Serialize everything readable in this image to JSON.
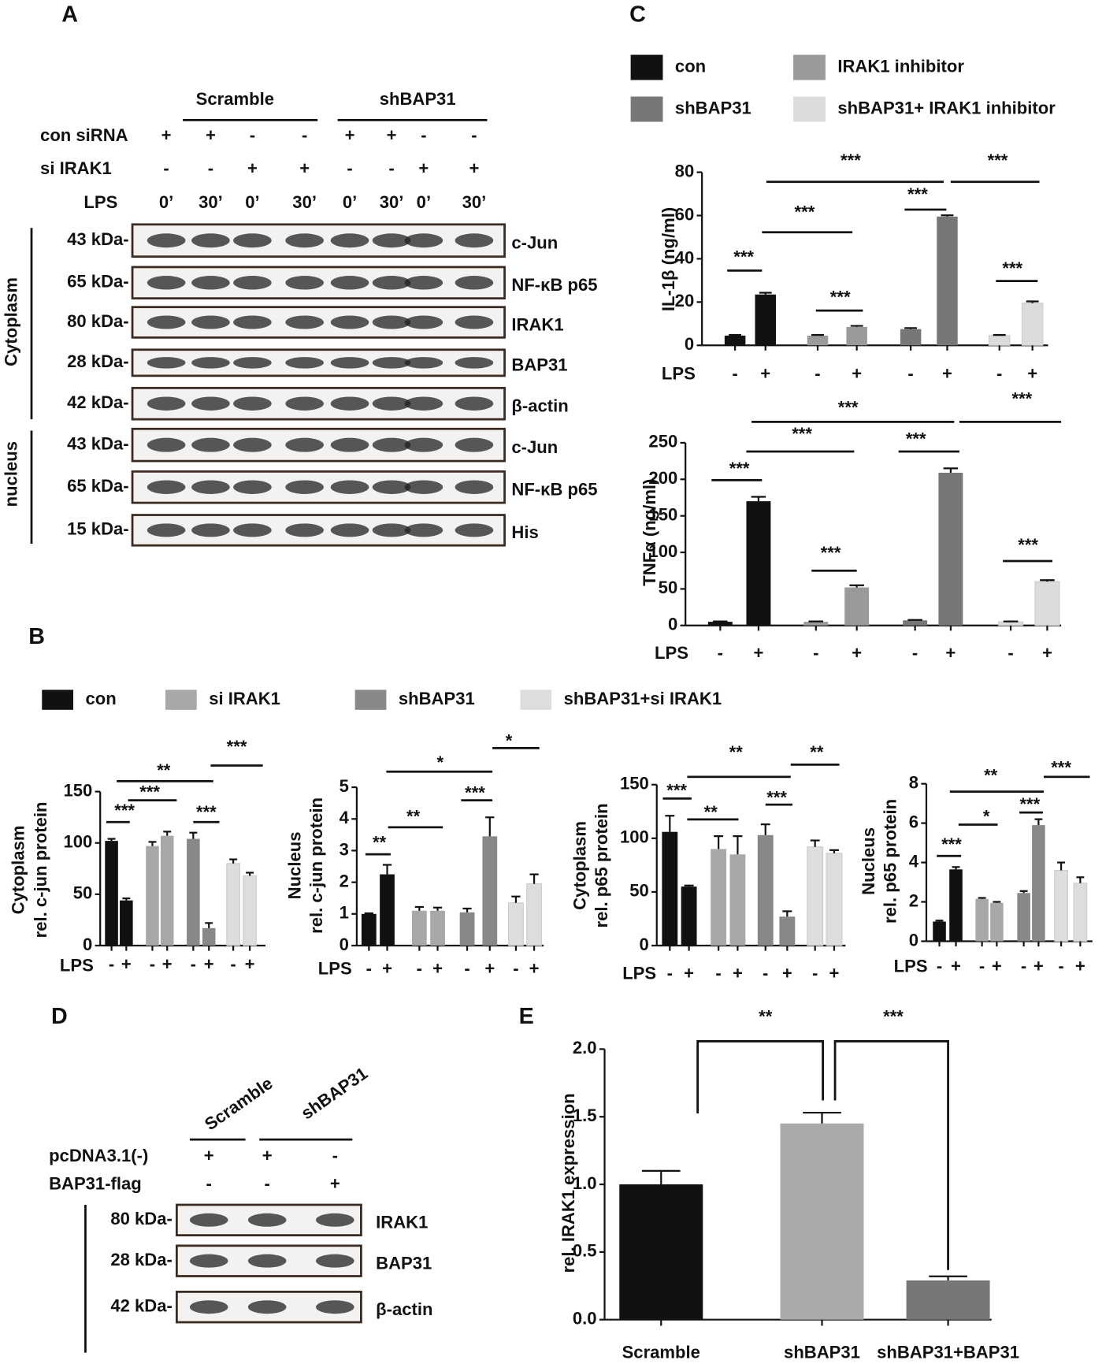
{
  "panel_labels": [
    "A",
    "B",
    "C",
    "D",
    "E"
  ],
  "blot_a": {
    "groups": [
      "Scramble",
      "shBAP31"
    ],
    "treatments": [
      {
        "label": "con siRNA",
        "marks": [
          "+",
          "+",
          "-",
          "-",
          "+",
          "+",
          "-",
          "-"
        ]
      },
      {
        "label": "si IRAK1",
        "marks": [
          "-",
          "-",
          "+",
          "+",
          "-",
          "-",
          "+",
          "+"
        ]
      },
      {
        "label": "LPS",
        "marks": [
          "0’",
          "30’",
          "0’",
          "30’",
          "0’",
          "30’",
          "0’",
          "30’"
        ]
      }
    ],
    "sections": [
      "Cytoplasm",
      "nucleus"
    ],
    "bands": [
      {
        "size": "43 kDa-",
        "protein": "c-Jun"
      },
      {
        "size": "65 kDa-",
        "protein": "NF-κB p65"
      },
      {
        "size": "80 kDa-",
        "protein": "IRAK1"
      },
      {
        "size": "28 kDa-",
        "protein": "BAP31"
      },
      {
        "size": "42 kDa-",
        "protein": "β-actin"
      },
      {
        "size": "43 kDa-",
        "protein": "c-Jun"
      },
      {
        "size": "65 kDa-",
        "protein": "NF-κB p65"
      },
      {
        "size": "15 kDa-",
        "protein": "His"
      }
    ]
  },
  "blot_d": {
    "groups": [
      "Scramble",
      "shBAP31"
    ],
    "treatments": [
      {
        "label": "pcDNA3.1(-)",
        "marks": [
          "+",
          "+",
          "-"
        ]
      },
      {
        "label": "BAP31-flag",
        "marks": [
          "-",
          "-",
          "+"
        ]
      }
    ],
    "bands": [
      {
        "size": "80 kDa-",
        "protein": "IRAK1"
      },
      {
        "size": "28 kDa-",
        "protein": "BAP31"
      },
      {
        "size": "42 kDa-",
        "protein": "β-actin"
      }
    ]
  },
  "chart_data": [
    {
      "type": "grouped-bar",
      "ylabel": [
        "IL-1β (ng/ml)"
      ],
      "x_label": "LPS",
      "categories": [
        "-",
        "+"
      ],
      "ylim": [
        0,
        80
      ],
      "yticks": [
        0,
        20,
        40,
        60,
        80
      ],
      "series": [
        {
          "name": "con",
          "color": "#111111",
          "values": [
            4.5,
            23.5
          ],
          "errors": [
            0.3,
            0.8
          ]
        },
        {
          "name": "IRAK1 inhibitor",
          "color": "#9a9a9a",
          "values": [
            4.5,
            8.5
          ],
          "errors": [
            0.3,
            0.5
          ]
        },
        {
          "name": "shBAP31",
          "color": "#777777",
          "values": [
            7.5,
            59.5
          ],
          "errors": [
            0.5,
            0.6
          ]
        },
        {
          "name": "shBAP31+ IRAK1 inhibitor",
          "color": "#dcdcdc",
          "values": [
            4.5,
            19.5
          ],
          "errors": [
            0.3,
            0.8
          ]
        }
      ],
      "annotations": [
        "***",
        "***",
        "***",
        "***",
        "***",
        "***",
        "***"
      ]
    },
    {
      "type": "grouped-bar",
      "ylabel": [
        "TNFα (ng/ml)"
      ],
      "x_label": "LPS",
      "categories": [
        "-",
        "+"
      ],
      "ylim": [
        0,
        250
      ],
      "yticks": [
        0,
        50,
        100,
        150,
        200,
        250
      ],
      "series": [
        {
          "color": "#111111",
          "values": [
            5,
            170
          ],
          "errors": [
            0.5,
            6
          ]
        },
        {
          "color": "#9a9a9a",
          "values": [
            5,
            52
          ],
          "errors": [
            0.5,
            3
          ]
        },
        {
          "color": "#777777",
          "values": [
            7,
            209
          ],
          "errors": [
            0.5,
            6
          ]
        },
        {
          "color": "#dcdcdc",
          "values": [
            5,
            60
          ],
          "errors": [
            0.5,
            2
          ]
        }
      ],
      "annotations": [
        "***",
        "***",
        "***",
        "***",
        "***",
        "***",
        "***"
      ]
    },
    {
      "type": "grouped-bar",
      "ylabel": [
        "Cytoplasm",
        "rel. c-jun protein"
      ],
      "x_label": "LPS",
      "categories": [
        "-",
        "+"
      ],
      "ylim": [
        0,
        150
      ],
      "yticks": [
        0,
        50,
        100,
        150
      ],
      "series": [
        {
          "name": "con",
          "color": "#111111",
          "values": [
            102,
            44
          ],
          "errors": [
            2,
            2
          ]
        },
        {
          "name": "si IRAK1",
          "color": "#a8a8a8",
          "values": [
            97,
            107
          ],
          "errors": [
            4,
            4
          ]
        },
        {
          "name": "shBAP31",
          "color": "#888888",
          "values": [
            104,
            17
          ],
          "errors": [
            6,
            5
          ]
        },
        {
          "name": "shBAP31+si IRAK1",
          "color": "#dddddd",
          "values": [
            80,
            68
          ],
          "errors": [
            4,
            3
          ]
        }
      ],
      "annotations": [
        "***",
        "***",
        "**",
        "***",
        "***"
      ]
    },
    {
      "type": "grouped-bar",
      "ylabel": [
        "Nucleus",
        "rel. c-jun protein"
      ],
      "x_label": "LPS",
      "categories": [
        "-",
        "+"
      ],
      "ylim": [
        0,
        5
      ],
      "yticks": [
        0,
        1,
        2,
        3,
        4,
        5
      ],
      "series": [
        {
          "color": "#111111",
          "values": [
            1.0,
            2.25
          ],
          "errors": [
            0.02,
            0.3
          ]
        },
        {
          "color": "#a8a8a8",
          "values": [
            1.1,
            1.1
          ],
          "errors": [
            0.12,
            0.1
          ]
        },
        {
          "color": "#888888",
          "values": [
            1.05,
            3.45
          ],
          "errors": [
            0.12,
            0.6
          ]
        },
        {
          "color": "#dddddd",
          "values": [
            1.35,
            1.95
          ],
          "errors": [
            0.2,
            0.3
          ]
        }
      ],
      "annotations": [
        "**",
        "**",
        "***",
        "*",
        "*"
      ]
    },
    {
      "type": "grouped-bar",
      "ylabel": [
        "Cytoplasm",
        "rel. p65 protein"
      ],
      "x_label": "LPS",
      "categories": [
        "-",
        "+"
      ],
      "ylim": [
        0,
        150
      ],
      "yticks": [
        0,
        50,
        100,
        150
      ],
      "series": [
        {
          "color": "#111111",
          "values": [
            106,
            55
          ],
          "errors": [
            15,
            1
          ]
        },
        {
          "color": "#a8a8a8",
          "values": [
            90,
            85
          ],
          "errors": [
            12,
            17
          ]
        },
        {
          "color": "#888888",
          "values": [
            103,
            27
          ],
          "errors": [
            10,
            5
          ]
        },
        {
          "color": "#dddddd",
          "values": [
            92,
            86
          ],
          "errors": [
            6,
            3
          ]
        }
      ],
      "annotations": [
        "***",
        "**",
        "***",
        "**",
        "**"
      ]
    },
    {
      "type": "grouped-bar",
      "ylabel": [
        "Nucleus",
        "rel. p65 protein"
      ],
      "x_label": "LPS",
      "categories": [
        "-",
        "+"
      ],
      "ylim": [
        0,
        8
      ],
      "yticks": [
        0,
        2,
        4,
        6,
        8
      ],
      "series": [
        {
          "color": "#111111",
          "values": [
            1.0,
            3.65
          ],
          "errors": [
            0.05,
            0.12
          ]
        },
        {
          "color": "#a8a8a8",
          "values": [
            2.15,
            1.95
          ],
          "errors": [
            0.05,
            0.05
          ]
        },
        {
          "color": "#888888",
          "values": [
            2.45,
            5.9
          ],
          "errors": [
            0.1,
            0.3
          ]
        },
        {
          "color": "#dddddd",
          "values": [
            3.6,
            2.95
          ],
          "errors": [
            0.4,
            0.3
          ]
        }
      ],
      "annotations": [
        "***",
        "*",
        "***",
        "**",
        "***"
      ]
    },
    {
      "type": "bar",
      "ylabel": [
        "rel. IRAK1 expression"
      ],
      "categories": [
        "Scramble",
        "shBAP31",
        "shBAP31+BAP31"
      ],
      "values": [
        1.0,
        1.45,
        0.29
      ],
      "errors": [
        0.1,
        0.08,
        0.03
      ],
      "colors": [
        "#111111",
        "#aaaaaa",
        "#777777"
      ],
      "ylim": [
        0,
        2
      ],
      "yticks": [
        {
          "value": 0,
          "label": "0.0"
        },
        {
          "value": 0.5,
          "label": "0.5"
        },
        {
          "value": 1,
          "label": "1.0"
        },
        {
          "value": 1.5,
          "label": "1.5"
        },
        {
          "value": 2,
          "label": "2.0"
        }
      ],
      "annotations": [
        "**",
        "***"
      ]
    }
  ]
}
